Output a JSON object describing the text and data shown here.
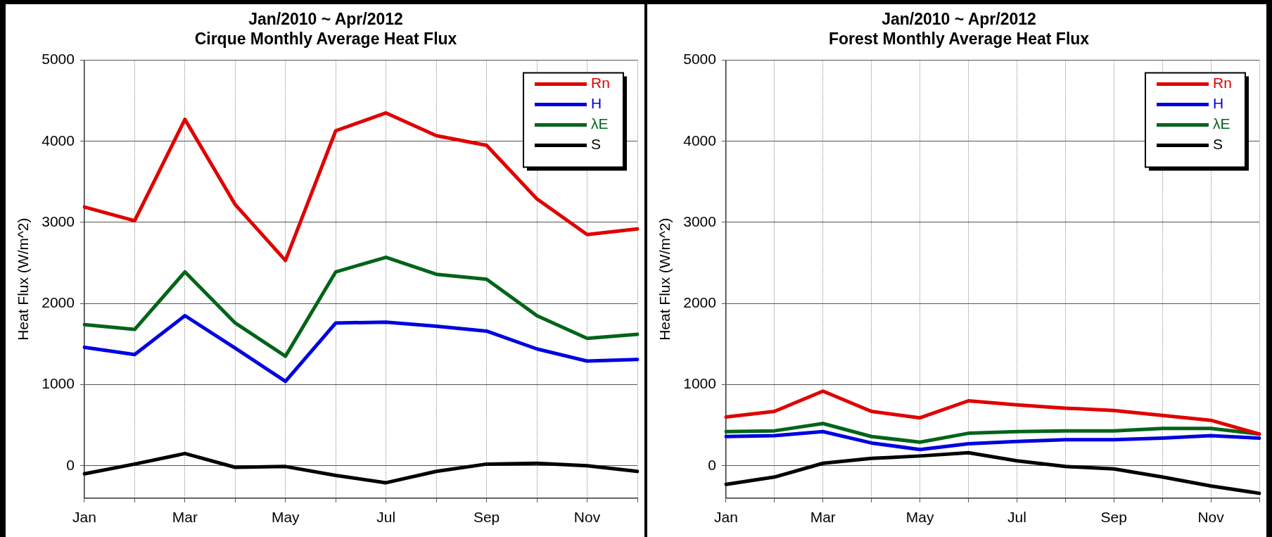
{
  "chart_data": [
    {
      "type": "line",
      "title": "Jan/2010 ~ Apr/2012",
      "subtitle": "Cirque Monthly Average Heat Flux",
      "ylabel": "Heat Flux (W/m^2)",
      "categories": [
        "Jan",
        null,
        "Mar",
        null,
        "May",
        null,
        "Jul",
        null,
        "Sep",
        null,
        "Nov",
        null
      ],
      "series": [
        {
          "name": "Rn",
          "color": "#e00000",
          "values": [
            3190,
            3020,
            4270,
            3220,
            2530,
            4130,
            4350,
            4070,
            3950,
            3290,
            2850,
            2920
          ]
        },
        {
          "name": "H",
          "color": "#0000e0",
          "values": [
            1460,
            1370,
            1850,
            1450,
            1040,
            1760,
            1770,
            1720,
            1660,
            1440,
            1290,
            1310
          ]
        },
        {
          "name": "λE",
          "color": "#006418",
          "values": [
            1740,
            1680,
            2390,
            1760,
            1350,
            2390,
            2570,
            2360,
            2300,
            1850,
            1570,
            1620
          ]
        },
        {
          "name": "S",
          "color": "#000000",
          "values": [
            -100,
            20,
            150,
            -20,
            -10,
            -120,
            -210,
            -70,
            20,
            30,
            0,
            -70
          ]
        }
      ],
      "ylim": [
        -400,
        5000
      ],
      "yticks": [
        0,
        1000,
        2000,
        3000,
        4000,
        5000
      ],
      "grid": true,
      "legend": "top right",
      "marker": "none",
      "line_style": "solid"
    },
    {
      "type": "line",
      "title": "Jan/2010 ~ Apr/2012",
      "subtitle": "Forest Monthly Average Heat Flux",
      "ylabel": "Heat Flux (W/m^2)",
      "categories": [
        "Jan",
        null,
        "Mar",
        null,
        "May",
        null,
        "Jul",
        null,
        "Sep",
        null,
        "Nov",
        null
      ],
      "series": [
        {
          "name": "Rn",
          "color": "#e00000",
          "values": [
            600,
            670,
            920,
            670,
            590,
            800,
            750,
            710,
            680,
            620,
            560,
            390
          ]
        },
        {
          "name": "H",
          "color": "#0000e0",
          "values": [
            360,
            370,
            420,
            280,
            200,
            270,
            300,
            320,
            320,
            340,
            370,
            340
          ]
        },
        {
          "name": "λE",
          "color": "#006418",
          "values": [
            420,
            430,
            520,
            360,
            290,
            400,
            420,
            430,
            430,
            460,
            460,
            390
          ]
        },
        {
          "name": "S",
          "color": "#000000",
          "values": [
            -230,
            -140,
            30,
            90,
            120,
            160,
            60,
            -10,
            -40,
            -140,
            -250,
            -340
          ]
        }
      ],
      "ylim": [
        -400,
        5000
      ],
      "yticks": [
        0,
        1000,
        2000,
        3000,
        4000,
        5000
      ],
      "grid": true,
      "legend": "top right",
      "marker": "none",
      "line_style": "solid"
    }
  ]
}
